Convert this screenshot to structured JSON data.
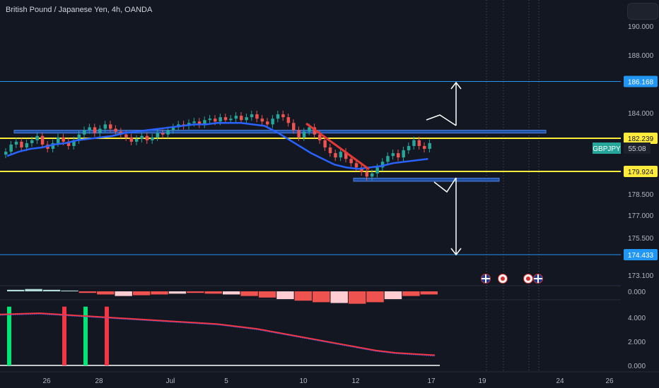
{
  "header": {
    "title": "British Pound / Japanese Yen, 4h, OANDA"
  },
  "symbol": {
    "name": "GBPJPY",
    "countdown": "55:08",
    "color": "#26a69a"
  },
  "colors": {
    "up": "#26a69a",
    "down": "#ef5350",
    "ma": "#2962ff",
    "yellow": "#ffeb3b",
    "level": "#2196f3",
    "zone": "#1e4fa3",
    "hist_neg": "#ef5350",
    "hist_neg_light": "#ffcdd2",
    "signal_red": "#f23645",
    "signal_green": "#00e676"
  },
  "icons": [
    "uk-flag-icon",
    "jp-flag-icon",
    "jp-flag-icon",
    "uk-flag-icon"
  ],
  "chart_data": {
    "type": "candlestick",
    "title": "British Pound / Japanese Yen, 4h, OANDA",
    "x_ticks": [
      "26",
      "28",
      "Jul",
      "5",
      "10",
      "12",
      "17",
      "19",
      "24",
      "26"
    ],
    "price_axis": {
      "ticks": [
        "190.000",
        "188.000",
        "184.000",
        "178.500",
        "177.000",
        "175.500",
        "173.100"
      ],
      "ylim": [
        173.1,
        190.0
      ]
    },
    "price_labels": [
      {
        "value": "186.168",
        "kind": "level"
      },
      {
        "value": "182.239",
        "kind": "yellow"
      },
      {
        "value": "179.924",
        "kind": "yellow"
      }
    ],
    "closes": [
      181.3,
      181.8,
      182.0,
      181.6,
      181.9,
      182.1,
      182.4,
      181.8,
      181.5,
      181.9,
      182.3,
      182.0,
      181.7,
      182.1,
      182.5,
      182.8,
      183.0,
      182.6,
      182.9,
      183.2,
      182.9,
      182.7,
      182.5,
      182.3,
      182.0,
      182.2,
      182.4,
      182.1,
      182.3,
      182.6,
      182.5,
      182.8,
      183.0,
      183.2,
      183.1,
      183.3,
      183.4,
      183.2,
      183.5,
      183.6,
      183.4,
      183.7,
      183.5,
      183.6,
      183.8,
      183.5,
      183.7,
      183.9,
      183.6,
      183.4,
      183.2,
      183.6,
      183.9,
      183.7,
      183.3,
      182.8,
      182.3,
      182.7,
      183.0,
      182.5,
      182.1,
      181.6,
      181.2,
      180.9,
      181.3,
      180.8,
      180.5,
      180.2,
      179.9,
      179.6,
      179.8,
      180.2,
      180.6,
      181.0,
      181.2,
      180.9,
      181.4,
      181.7,
      182.1,
      181.7,
      181.5,
      181.9
    ],
    "ma": [
      181.0,
      181.3,
      181.5,
      181.6,
      181.8,
      181.9,
      182.1,
      182.2,
      182.3,
      182.4,
      182.6,
      182.7,
      182.8,
      182.9,
      183.0,
      183.1,
      183.2,
      183.2,
      183.3,
      183.3,
      183.3,
      183.2,
      183.1,
      182.7,
      182.2,
      181.7,
      181.2,
      180.8,
      180.4,
      180.2,
      180.1,
      180.2,
      180.3,
      180.5,
      180.6,
      180.7,
      180.8
    ],
    "levels": [
      186.168,
      182.239,
      179.924,
      174.433
    ],
    "zones": [
      [
        182.6,
        182.8
      ],
      [
        179.3,
        179.5
      ]
    ],
    "histogram": {
      "axis_label": "0.000",
      "values": [
        0.1,
        0.15,
        0.1,
        0.05,
        -0.1,
        -0.2,
        -0.3,
        -0.25,
        -0.2,
        -0.15,
        -0.1,
        -0.15,
        -0.2,
        -0.3,
        -0.4,
        -0.5,
        -0.6,
        -0.7,
        -0.75,
        -0.8,
        -0.7,
        -0.5,
        -0.3,
        -0.2
      ]
    },
    "oscillator": {
      "ticks": [
        "4.000",
        "2.000",
        "0.000"
      ],
      "ylim": [
        0,
        5
      ],
      "values": [
        4.2,
        4.25,
        4.3,
        4.2,
        4.1,
        4.0,
        3.9,
        3.8,
        3.7,
        3.6,
        3.5,
        3.4,
        3.2,
        3.0,
        2.7,
        2.4,
        2.1,
        1.8,
        1.5,
        1.2,
        1.0,
        0.9,
        0.8
      ],
      "signals": [
        {
          "i": 0,
          "color": "green"
        },
        {
          "i": 4,
          "color": "red"
        },
        {
          "i": 6,
          "color": "green"
        },
        {
          "i": 8,
          "color": "red"
        }
      ]
    }
  }
}
